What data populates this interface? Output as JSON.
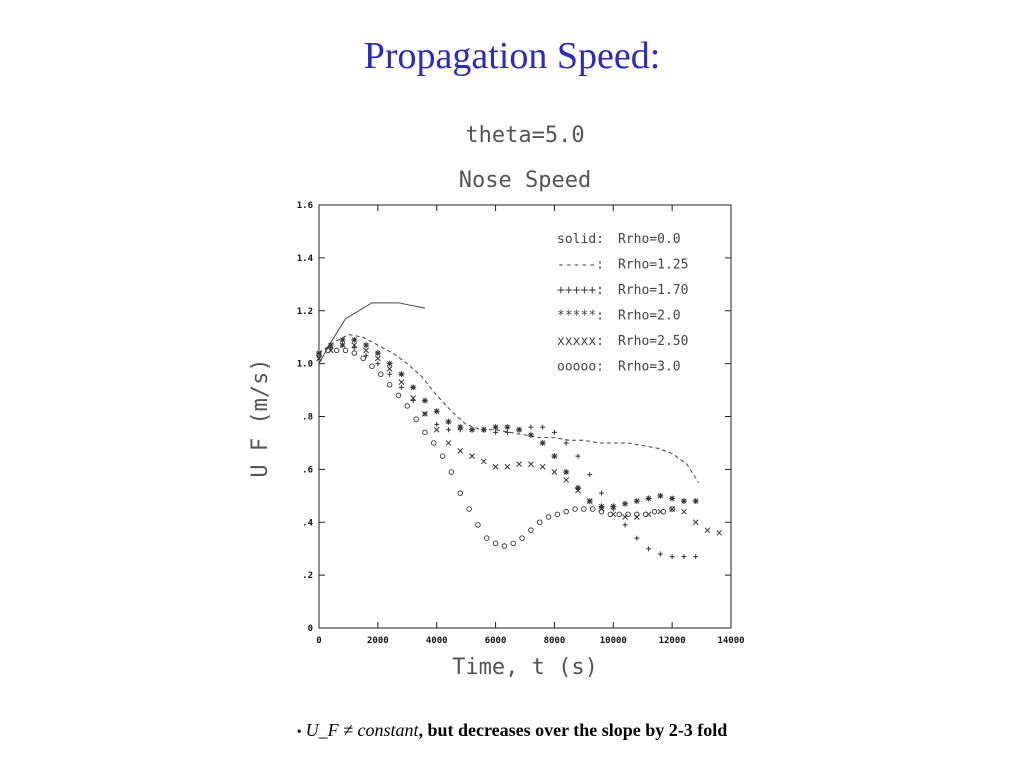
{
  "slide": {
    "title": "Propagation Speed:",
    "note": {
      "bullet": "•",
      "math": "U_F ≠ constant",
      "rest": ", but decreases over the slope by 2-3 fold"
    }
  },
  "chart_data": {
    "type": "line",
    "title": "theta=5.0",
    "subtitle": "Nose Speed",
    "xlabel": "Time, t (s)",
    "ylabel": "U F (m/s)",
    "xlim": [
      0,
      14000
    ],
    "ylim": [
      0,
      1.6
    ],
    "x_ticks": [
      0,
      2000,
      4000,
      6000,
      8000,
      10000,
      12000,
      14000
    ],
    "x_tick_labels": [
      "0",
      "2000",
      "4000",
      "6000",
      "8000",
      "10000",
      "12000",
      "14000"
    ],
    "y_ticks": [
      0,
      0.2,
      0.4,
      0.6,
      0.8,
      1.0,
      1.2,
      1.4,
      1.6
    ],
    "y_tick_labels": [
      "0",
      ".2",
      ".4",
      ".6",
      ".8",
      "1.0",
      "1.2",
      "1.4",
      "1.6"
    ],
    "grid": false,
    "legend_position": "top-right",
    "series": [
      {
        "name": "solid: Rrho=0.0",
        "legend_symbol": "solid:",
        "legend_value": "Rrho=0.0",
        "style": "solid",
        "x": [
          0,
          400,
          900,
          1800,
          2700,
          3600
        ],
        "y": [
          1.0,
          1.08,
          1.17,
          1.23,
          1.23,
          1.21
        ]
      },
      {
        "name": "-----: Rrho=1.25",
        "legend_symbol": "-----:",
        "legend_value": "Rrho=1.25",
        "style": "dashed",
        "x": [
          0,
          500,
          1000,
          1500,
          2000,
          2500,
          3000,
          3500,
          4000,
          4500,
          5000,
          5500,
          6000,
          6500,
          7000,
          7500,
          8000,
          8500,
          9000,
          9500,
          10000,
          10500,
          11000,
          11500,
          12000,
          12500,
          12900
        ],
        "y": [
          1.04,
          1.08,
          1.11,
          1.1,
          1.07,
          1.04,
          1.0,
          0.95,
          0.88,
          0.82,
          0.77,
          0.75,
          0.75,
          0.74,
          0.73,
          0.72,
          0.72,
          0.71,
          0.71,
          0.7,
          0.7,
          0.7,
          0.69,
          0.68,
          0.66,
          0.62,
          0.55
        ]
      },
      {
        "name": "+++++: Rrho=1.70",
        "legend_symbol": "+++++:",
        "legend_value": "Rrho=1.70",
        "style": "plus",
        "x": [
          0,
          400,
          800,
          1200,
          1600,
          2000,
          2400,
          2800,
          3200,
          3600,
          4000,
          4400,
          4800,
          5200,
          5600,
          6000,
          6400,
          6800,
          7200,
          7600,
          8000,
          8400,
          8800,
          9200,
          9600,
          10000,
          10400,
          10800,
          11200,
          11600,
          12000,
          12400,
          12800
        ],
        "y": [
          1.03,
          1.06,
          1.07,
          1.06,
          1.03,
          1.0,
          0.96,
          0.91,
          0.86,
          0.81,
          0.77,
          0.75,
          0.75,
          0.75,
          0.75,
          0.74,
          0.74,
          0.75,
          0.76,
          0.76,
          0.74,
          0.7,
          0.65,
          0.58,
          0.51,
          0.45,
          0.39,
          0.34,
          0.3,
          0.28,
          0.27,
          0.27,
          0.27
        ]
      },
      {
        "name": "*****: Rrho=2.0",
        "legend_symbol": "*****:",
        "legend_value": "Rrho=2.0",
        "style": "star",
        "x": [
          0,
          400,
          800,
          1200,
          1600,
          2000,
          2400,
          2800,
          3200,
          3600,
          4000,
          4400,
          4800,
          5200,
          5600,
          6000,
          6400,
          6800,
          7200,
          7600,
          8000,
          8400,
          8800,
          9200,
          9600,
          10000,
          10400,
          10800,
          11200,
          11600,
          12000,
          12400,
          12800
        ],
        "y": [
          1.04,
          1.07,
          1.09,
          1.09,
          1.07,
          1.04,
          1.0,
          0.96,
          0.91,
          0.86,
          0.82,
          0.78,
          0.76,
          0.75,
          0.75,
          0.76,
          0.76,
          0.75,
          0.73,
          0.7,
          0.65,
          0.59,
          0.53,
          0.48,
          0.46,
          0.46,
          0.47,
          0.48,
          0.49,
          0.5,
          0.49,
          0.48,
          0.48
        ]
      },
      {
        "name": "xxxxx: Rrho=2.50",
        "legend_symbol": "xxxxx:",
        "legend_value": "Rrho=2.50",
        "style": "cross",
        "x": [
          0,
          400,
          800,
          1200,
          1600,
          2000,
          2400,
          2800,
          3200,
          3600,
          4000,
          4400,
          4800,
          5200,
          5600,
          6000,
          6400,
          6800,
          7200,
          7600,
          8000,
          8400,
          8800,
          9200,
          9600,
          10000,
          10400,
          10800,
          11200,
          11600,
          12000,
          12400,
          12800,
          13200,
          13600
        ],
        "y": [
          1.02,
          1.05,
          1.07,
          1.07,
          1.05,
          1.02,
          0.98,
          0.93,
          0.87,
          0.81,
          0.75,
          0.7,
          0.67,
          0.65,
          0.63,
          0.61,
          0.61,
          0.62,
          0.62,
          0.61,
          0.59,
          0.56,
          0.52,
          0.48,
          0.45,
          0.43,
          0.42,
          0.42,
          0.43,
          0.44,
          0.45,
          0.44,
          0.4,
          0.37,
          0.36
        ]
      },
      {
        "name": "ooooo: Rrho=3.0",
        "legend_symbol": "ooooo:",
        "legend_value": "Rrho=3.0",
        "style": "circle",
        "x": [
          0,
          300,
          600,
          900,
          1200,
          1500,
          1800,
          2100,
          2400,
          2700,
          3000,
          3300,
          3600,
          3900,
          4200,
          4500,
          4800,
          5100,
          5400,
          5700,
          6000,
          6300,
          6600,
          6900,
          7200,
          7500,
          7800,
          8100,
          8400,
          8700,
          9000,
          9300,
          9600,
          9900,
          10200,
          10500,
          10800,
          11100,
          11400,
          11700,
          12000
        ],
        "y": [
          1.03,
          1.05,
          1.05,
          1.05,
          1.04,
          1.02,
          0.99,
          0.96,
          0.92,
          0.88,
          0.84,
          0.79,
          0.74,
          0.7,
          0.65,
          0.59,
          0.51,
          0.45,
          0.39,
          0.34,
          0.32,
          0.31,
          0.32,
          0.34,
          0.37,
          0.4,
          0.42,
          0.43,
          0.44,
          0.45,
          0.45,
          0.45,
          0.44,
          0.43,
          0.43,
          0.43,
          0.43,
          0.43,
          0.44,
          0.44,
          0.45
        ]
      }
    ]
  }
}
